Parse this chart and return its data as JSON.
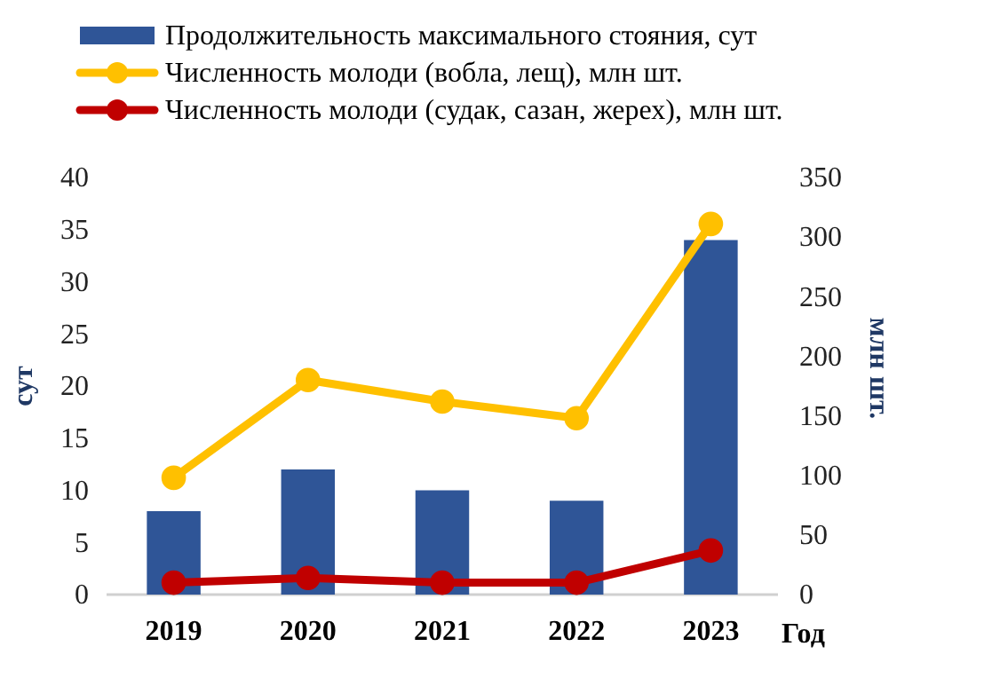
{
  "chart_data": {
    "type": "bar",
    "categories": [
      "2019",
      "2020",
      "2021",
      "2022",
      "2023"
    ],
    "xlabel": "Год",
    "ylabel": "сут",
    "y2label": "млн шт.",
    "ylim": [
      0,
      40
    ],
    "yticks": [
      0,
      5,
      10,
      15,
      20,
      25,
      30,
      35,
      40
    ],
    "y2lim": [
      0,
      350
    ],
    "y2ticks": [
      0,
      50,
      100,
      150,
      200,
      250,
      300,
      350
    ],
    "legend": "top",
    "grid": false,
    "marker": "circle",
    "series": [
      {
        "name": "Продолжительность максимального стояния, сут",
        "color": "#2f5597",
        "values": [
          8,
          12,
          10,
          9,
          34
        ]
      },
      {
        "name": "Численность молоди (вобла, лещ), млн шт.",
        "type": "line",
        "axis": "y2",
        "color": "#ffc000",
        "values": [
          98,
          180,
          162,
          148,
          311
        ]
      },
      {
        "name": "Численность молоди (судак, сазан, жерех), млн шт.",
        "type": "line",
        "axis": "y2",
        "color": "#c00000",
        "values": [
          10,
          14,
          10,
          10,
          37
        ]
      }
    ]
  }
}
